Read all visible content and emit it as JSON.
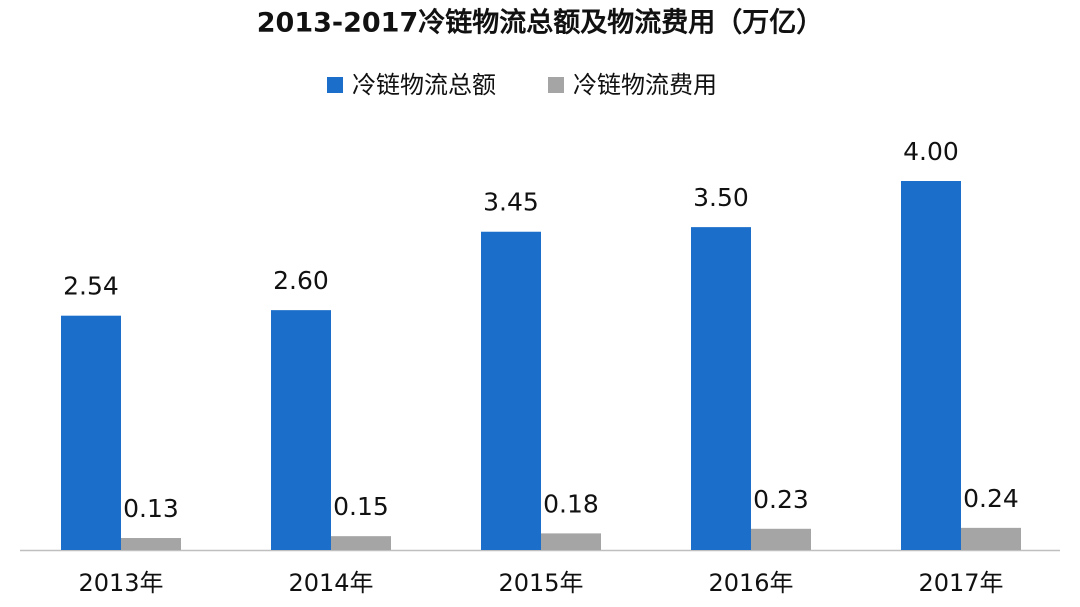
{
  "chart_data": {
    "type": "bar",
    "title": "2013-2017冷链物流总额及物流费用（万亿）",
    "categories": [
      "2013年",
      "2014年",
      "2015年",
      "2016年",
      "2017年"
    ],
    "series": [
      {
        "name": "冷链物流总额",
        "color": "#1b6fca",
        "values": [
          2.54,
          2.6,
          3.45,
          3.5,
          4.0
        ],
        "value_labels": [
          "2.54",
          "2.60",
          "3.45",
          "3.50",
          "4.00"
        ]
      },
      {
        "name": "冷链物流费用",
        "color": "#a5a5a5",
        "values": [
          0.13,
          0.15,
          0.18,
          0.23,
          0.24
        ],
        "value_labels": [
          "0.13",
          "0.15",
          "0.18",
          "0.23",
          "0.24"
        ]
      }
    ]
  }
}
